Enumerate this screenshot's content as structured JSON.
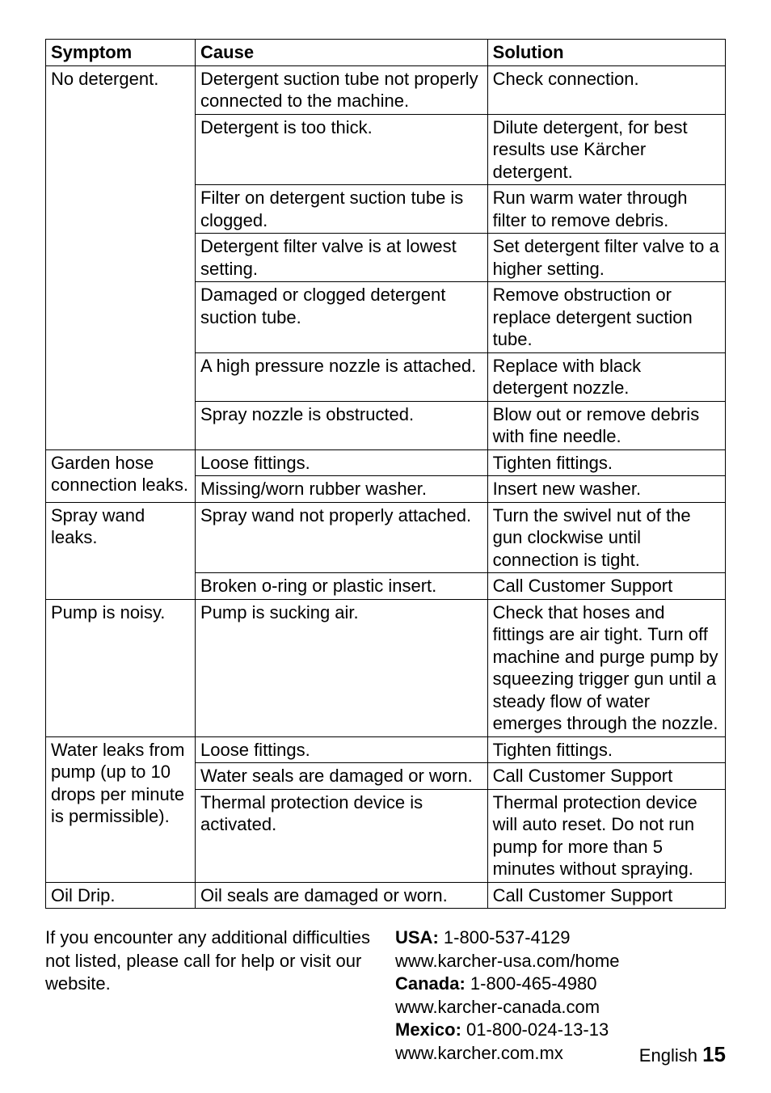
{
  "table": {
    "headers": [
      "Symptom",
      "Cause",
      "Solution"
    ],
    "col_widths_pct": [
      22,
      43,
      35
    ],
    "border_color": "#000000",
    "font_size_pt": 16,
    "rows": [
      {
        "symptom": "No detergent.",
        "cause": "Detergent suction tube not properly connected to the machine.",
        "solution": "Check connection."
      },
      {
        "cause": "Detergent is too thick.",
        "solution": "Dilute detergent, for best results use Kärcher detergent."
      },
      {
        "cause": "Filter on detergent suction tube is clogged.",
        "solution": "Run warm water through filter to remove debris."
      },
      {
        "cause": "Detergent filter valve is at lowest setting.",
        "solution": "Set detergent filter valve to a higher setting."
      },
      {
        "cause": "Damaged or clogged detergent suction tube.",
        "solution": "Remove obstruction or replace detergent suction tube."
      },
      {
        "cause": "A high pressure nozzle is attached.",
        "solution": "Replace with black detergent nozzle."
      },
      {
        "cause": "Spray nozzle is obstructed.",
        "solution": "Blow out or remove debris with fine needle."
      },
      {
        "symptom": "Garden hose connection leaks.",
        "cause": "Loose fittings.",
        "solution": "Tighten fittings."
      },
      {
        "cause": "Missing/worn rubber washer.",
        "solution": "Insert new washer."
      },
      {
        "symptom": "Spray wand leaks.",
        "cause": "Spray wand not properly attached.",
        "solution": "Turn the swivel nut of the gun clockwise until connection is tight."
      },
      {
        "cause": "Broken o-ring or plastic insert.",
        "solution": "Call Customer Support"
      },
      {
        "symptom": "Pump is noisy.",
        "cause": "Pump is sucking air.",
        "solution": "Check that hoses and fittings are air tight. Turn off machine and purge pump by squeezing trigger gun until a steady flow of water emerges through the nozzle."
      },
      {
        "symptom": "Water leaks from pump (up to 10 drops per minute is permissible).",
        "cause": "Loose fittings.",
        "solution": "Tighten fittings."
      },
      {
        "cause": "Water seals are damaged or worn.",
        "solution": "Call Customer Support"
      },
      {
        "cause": "Thermal protection device is activated.",
        "solution": "Thermal protection device will auto reset. Do not run pump for more than 5 minutes without spraying."
      },
      {
        "symptom": "Oil Drip.",
        "cause": "Oil seals are damaged or worn.",
        "solution": "Call Customer Support"
      }
    ]
  },
  "below": {
    "left": "If you encounter any additional difficulties not listed, please call for help or visit our website.",
    "usa_label": "USA:",
    "usa_phone": "1-800-537-4129",
    "usa_web": "www.karcher-usa.com/home",
    "canada_label": "Canada:",
    "canada_phone": "1-800-465-4980",
    "canada_web": "www.karcher-canada.com",
    "mexico_label": "Mexico:",
    "mexico_phone": "01-800-024-13-13",
    "mexico_web": "www.karcher.com.mx"
  },
  "footer": {
    "language": "English",
    "page_number": "15"
  }
}
